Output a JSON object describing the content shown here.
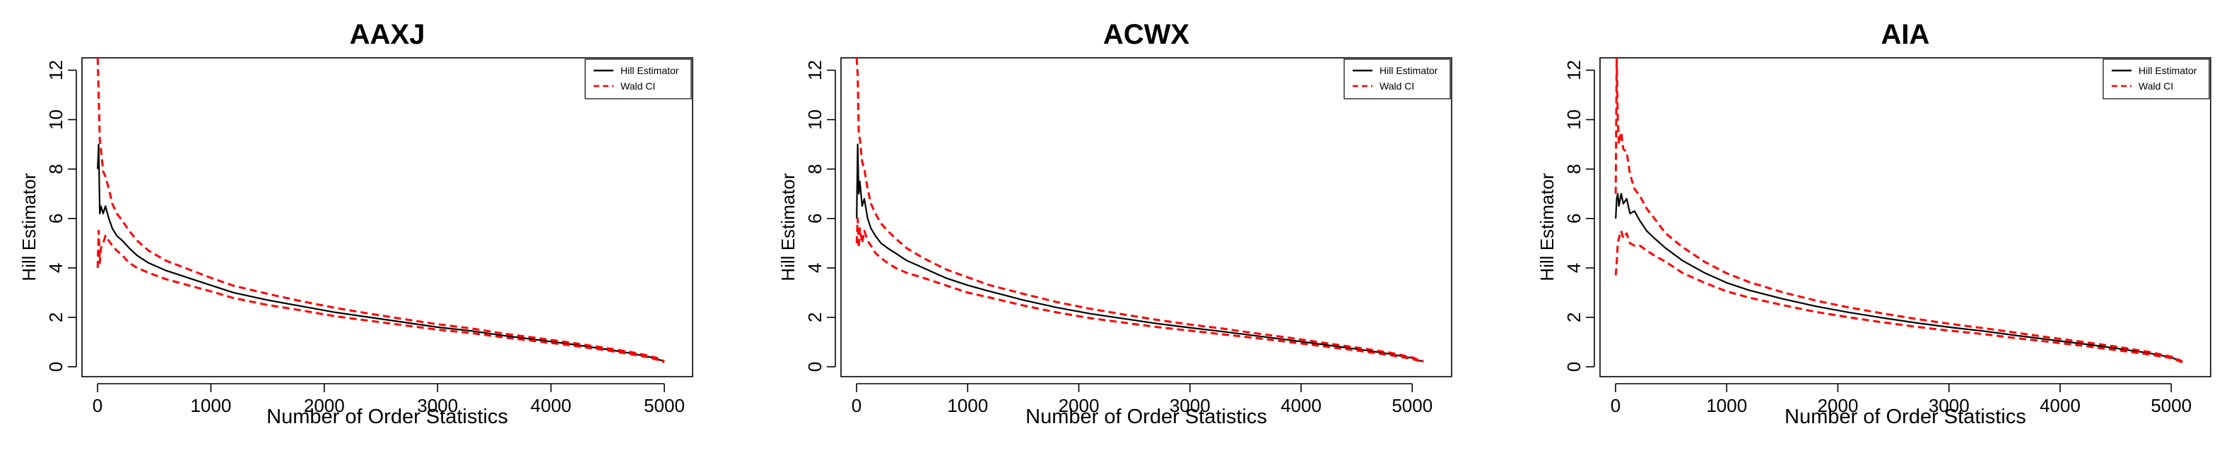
{
  "chart_data": [
    {
      "type": "line",
      "title": "AAXJ",
      "xlabel": "Number of Order Statistics",
      "ylabel": "Hill Estimator",
      "xlim": [
        0,
        5000
      ],
      "ylim": [
        0,
        12.5
      ],
      "xticks": [
        "0",
        "1000",
        "2000",
        "3000",
        "4000",
        "5000"
      ],
      "yticks": [
        "0",
        "2",
        "4",
        "6",
        "8",
        "10",
        "12"
      ],
      "grid": false,
      "legend": {
        "position": "top-right",
        "entries": [
          "Hill Estimator",
          "Wald CI"
        ]
      },
      "x": [
        1,
        10,
        20,
        30,
        50,
        70,
        100,
        130,
        170,
        220,
        280,
        350,
        450,
        600,
        800,
        1000,
        1200,
        1500,
        1800,
        2100,
        2400,
        2700,
        3000,
        3300,
        3600,
        3900,
        4200,
        4500,
        4700,
        4850,
        4950,
        5000
      ],
      "series": [
        {
          "name": "Hill Estimator",
          "color": "#000000",
          "dash": "solid",
          "values": [
            8.0,
            9.0,
            6.2,
            6.5,
            6.2,
            6.5,
            6.0,
            5.6,
            5.3,
            5.1,
            4.8,
            4.5,
            4.2,
            3.9,
            3.6,
            3.3,
            3.0,
            2.7,
            2.45,
            2.2,
            2.0,
            1.8,
            1.6,
            1.45,
            1.25,
            1.08,
            0.9,
            0.7,
            0.55,
            0.42,
            0.3,
            0.2
          ]
        },
        {
          "name": "Wald CI",
          "color": "#ff0000",
          "dash": "dashed",
          "values": [
            12.5,
            11.0,
            9.2,
            8.8,
            7.9,
            7.7,
            7.2,
            6.6,
            6.2,
            5.9,
            5.5,
            5.1,
            4.7,
            4.3,
            3.95,
            3.6,
            3.28,
            2.95,
            2.65,
            2.38,
            2.15,
            1.93,
            1.72,
            1.55,
            1.33,
            1.15,
            0.96,
            0.75,
            0.6,
            0.46,
            0.34,
            0.22
          ]
        },
        {
          "name": "",
          "color": "#ff0000",
          "dash": "dashed",
          "values": [
            4.0,
            5.5,
            4.2,
            4.8,
            5.0,
            5.3,
            5.1,
            4.9,
            4.7,
            4.5,
            4.2,
            4.0,
            3.8,
            3.55,
            3.3,
            3.05,
            2.78,
            2.5,
            2.28,
            2.04,
            1.86,
            1.68,
            1.5,
            1.36,
            1.18,
            1.02,
            0.85,
            0.66,
            0.51,
            0.39,
            0.27,
            0.18
          ]
        }
      ]
    },
    {
      "type": "line",
      "title": "ACWX",
      "xlabel": "Number of Order Statistics",
      "ylabel": "Hill Estimator",
      "xlim": [
        0,
        5100
      ],
      "ylim": [
        0,
        12.5
      ],
      "xticks": [
        "0",
        "1000",
        "2000",
        "3000",
        "4000",
        "5000"
      ],
      "yticks": [
        "0",
        "2",
        "4",
        "6",
        "8",
        "10",
        "12"
      ],
      "grid": false,
      "legend": {
        "position": "top-right",
        "entries": [
          "Hill Estimator",
          "Wald CI"
        ]
      },
      "x": [
        1,
        10,
        20,
        30,
        50,
        70,
        100,
        130,
        170,
        220,
        280,
        350,
        450,
        600,
        800,
        1000,
        1200,
        1500,
        1800,
        2100,
        2400,
        2700,
        3000,
        3300,
        3600,
        3900,
        4200,
        4500,
        4800,
        5000,
        5100
      ],
      "series": [
        {
          "name": "Hill Estimator",
          "color": "#000000",
          "dash": "solid",
          "values": [
            6.0,
            9.0,
            7.0,
            7.5,
            6.5,
            6.8,
            6.0,
            5.6,
            5.3,
            5.0,
            4.8,
            4.6,
            4.3,
            4.0,
            3.6,
            3.3,
            3.05,
            2.7,
            2.4,
            2.15,
            1.95,
            1.75,
            1.58,
            1.42,
            1.25,
            1.08,
            0.9,
            0.72,
            0.52,
            0.35,
            0.2
          ]
        },
        {
          "name": "Wald CI",
          "color": "#ff0000",
          "dash": "dashed",
          "values": [
            12.5,
            11.8,
            9.5,
            9.2,
            8.3,
            8.0,
            7.2,
            6.6,
            6.2,
            5.8,
            5.5,
            5.2,
            4.8,
            4.4,
            3.95,
            3.62,
            3.3,
            2.95,
            2.62,
            2.35,
            2.12,
            1.9,
            1.71,
            1.54,
            1.35,
            1.17,
            0.97,
            0.78,
            0.57,
            0.38,
            0.22
          ]
        },
        {
          "name": "",
          "color": "#ff0000",
          "dash": "dashed",
          "values": [
            5.0,
            6.0,
            4.8,
            5.6,
            5.0,
            5.5,
            5.1,
            4.9,
            4.6,
            4.4,
            4.2,
            4.0,
            3.8,
            3.6,
            3.3,
            3.0,
            2.8,
            2.48,
            2.2,
            1.97,
            1.79,
            1.61,
            1.46,
            1.31,
            1.16,
            1.0,
            0.83,
            0.66,
            0.47,
            0.32,
            0.18
          ]
        }
      ]
    },
    {
      "type": "line",
      "title": "AIA",
      "xlabel": "Number of Order Statistics",
      "ylabel": "Hill Estimator",
      "xlim": [
        0,
        5100
      ],
      "ylim": [
        0,
        12.5
      ],
      "xticks": [
        "0",
        "1000",
        "2000",
        "3000",
        "4000",
        "5000"
      ],
      "yticks": [
        "0",
        "2",
        "4",
        "6",
        "8",
        "10",
        "12"
      ],
      "grid": false,
      "legend": {
        "position": "top-right",
        "entries": [
          "Hill Estimator",
          "Wald CI"
        ]
      },
      "x": [
        1,
        10,
        20,
        30,
        50,
        70,
        100,
        130,
        170,
        220,
        280,
        350,
        450,
        600,
        800,
        1000,
        1200,
        1500,
        1800,
        2100,
        2400,
        2700,
        3000,
        3300,
        3600,
        3900,
        4200,
        4500,
        4800,
        5000,
        5100
      ],
      "series": [
        {
          "name": "Hill Estimator",
          "color": "#000000",
          "dash": "solid",
          "values": [
            6.0,
            6.8,
            7.0,
            6.5,
            7.0,
            6.6,
            6.8,
            6.2,
            6.3,
            5.9,
            5.5,
            5.2,
            4.8,
            4.3,
            3.8,
            3.4,
            3.1,
            2.75,
            2.45,
            2.2,
            1.98,
            1.78,
            1.6,
            1.45,
            1.27,
            1.1,
            0.93,
            0.75,
            0.55,
            0.38,
            0.2
          ]
        },
        {
          "name": "Wald CI",
          "color": "#ff0000",
          "dash": "dashed",
          "values": [
            7.0,
            12.5,
            10.0,
            9.0,
            9.5,
            8.8,
            8.7,
            7.8,
            7.2,
            6.9,
            6.4,
            6.0,
            5.4,
            4.85,
            4.25,
            3.78,
            3.43,
            3.02,
            2.68,
            2.4,
            2.16,
            1.94,
            1.74,
            1.57,
            1.38,
            1.19,
            1.01,
            0.82,
            0.6,
            0.41,
            0.22
          ]
        },
        {
          "name": "",
          "color": "#ff0000",
          "dash": "dashed",
          "values": [
            3.7,
            4.2,
            5.0,
            5.2,
            5.5,
            5.2,
            5.4,
            5.0,
            4.9,
            4.9,
            4.7,
            4.5,
            4.25,
            3.8,
            3.4,
            3.05,
            2.8,
            2.5,
            2.22,
            2.0,
            1.8,
            1.62,
            1.46,
            1.33,
            1.16,
            1.01,
            0.85,
            0.68,
            0.5,
            0.35,
            0.18
          ]
        }
      ]
    }
  ]
}
